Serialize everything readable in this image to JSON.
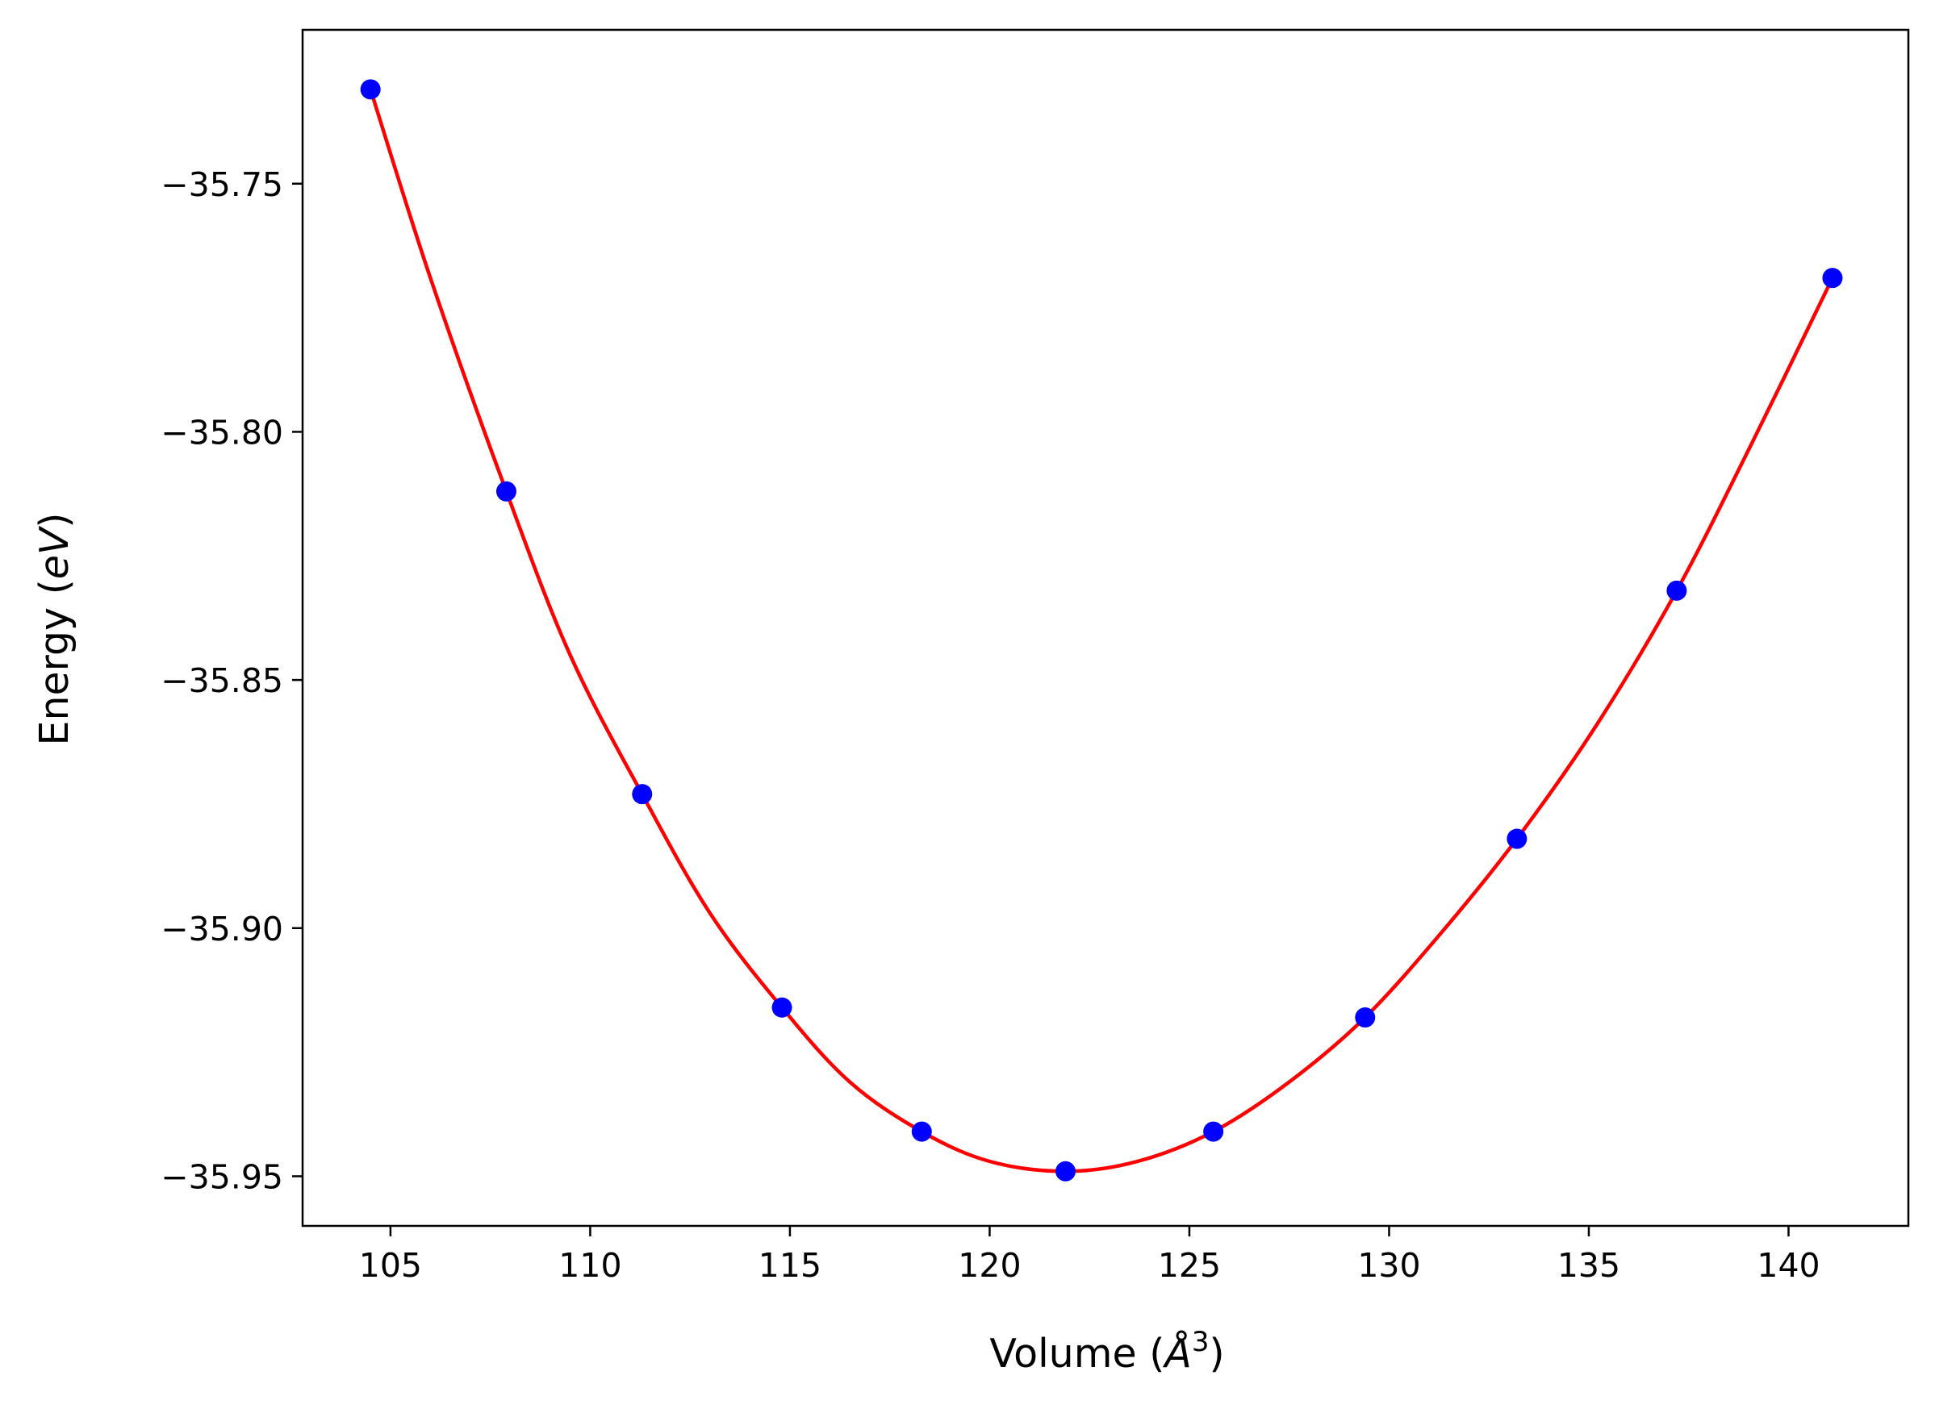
{
  "chart_data": {
    "type": "line",
    "title": "",
    "xlabel": "Volume (Å³)",
    "ylabel": "Energy (eV)",
    "xlabel_parts": {
      "prefix": "Volume (",
      "symbol": "Å",
      "superscript": "3",
      "suffix": ")"
    },
    "ylabel_parts": {
      "prefix": "Energy (",
      "unit": "eV",
      "suffix": ")"
    },
    "xlim": [
      102.8,
      143.0
    ],
    "ylim": [
      -35.96,
      -35.719
    ],
    "xticks": [
      105,
      110,
      115,
      120,
      125,
      130,
      135,
      140
    ],
    "xtick_labels": [
      "105",
      "110",
      "115",
      "120",
      "125",
      "130",
      "135",
      "140"
    ],
    "yticks": [
      -35.75,
      -35.8,
      -35.85,
      -35.9,
      -35.95
    ],
    "ytick_labels": [
      "−35.75",
      "−35.80",
      "−35.85",
      "−35.90",
      "−35.95"
    ],
    "grid": false,
    "legend": "none",
    "series": [
      {
        "kind": "scatter",
        "color": "#0000ff",
        "x": [
          104.5,
          107.9,
          111.3,
          114.8,
          118.3,
          121.9,
          125.6,
          129.4,
          133.2,
          137.2,
          141.1
        ],
        "y": [
          -35.731,
          -35.812,
          -35.873,
          -35.916,
          -35.941,
          -35.949,
          -35.941,
          -35.918,
          -35.882,
          -35.832,
          -35.769
        ]
      },
      {
        "kind": "fit-line",
        "color": "#ff0000",
        "x": [
          104.5,
          106.0,
          107.9,
          109.5,
          111.3,
          113.0,
          114.8,
          116.5,
          118.3,
          120.0,
          121.9,
          123.7,
          125.6,
          127.5,
          129.4,
          131.3,
          133.2,
          135.2,
          137.2,
          139.1,
          141.1
        ],
        "y": [
          -35.731,
          -35.769,
          -35.812,
          -35.845,
          -35.873,
          -35.897,
          -35.916,
          -35.931,
          -35.941,
          -35.947,
          -35.949,
          -35.947,
          -35.941,
          -35.931,
          -35.918,
          -35.901,
          -35.882,
          -35.859,
          -35.832,
          -35.802,
          -35.769
        ]
      }
    ]
  }
}
